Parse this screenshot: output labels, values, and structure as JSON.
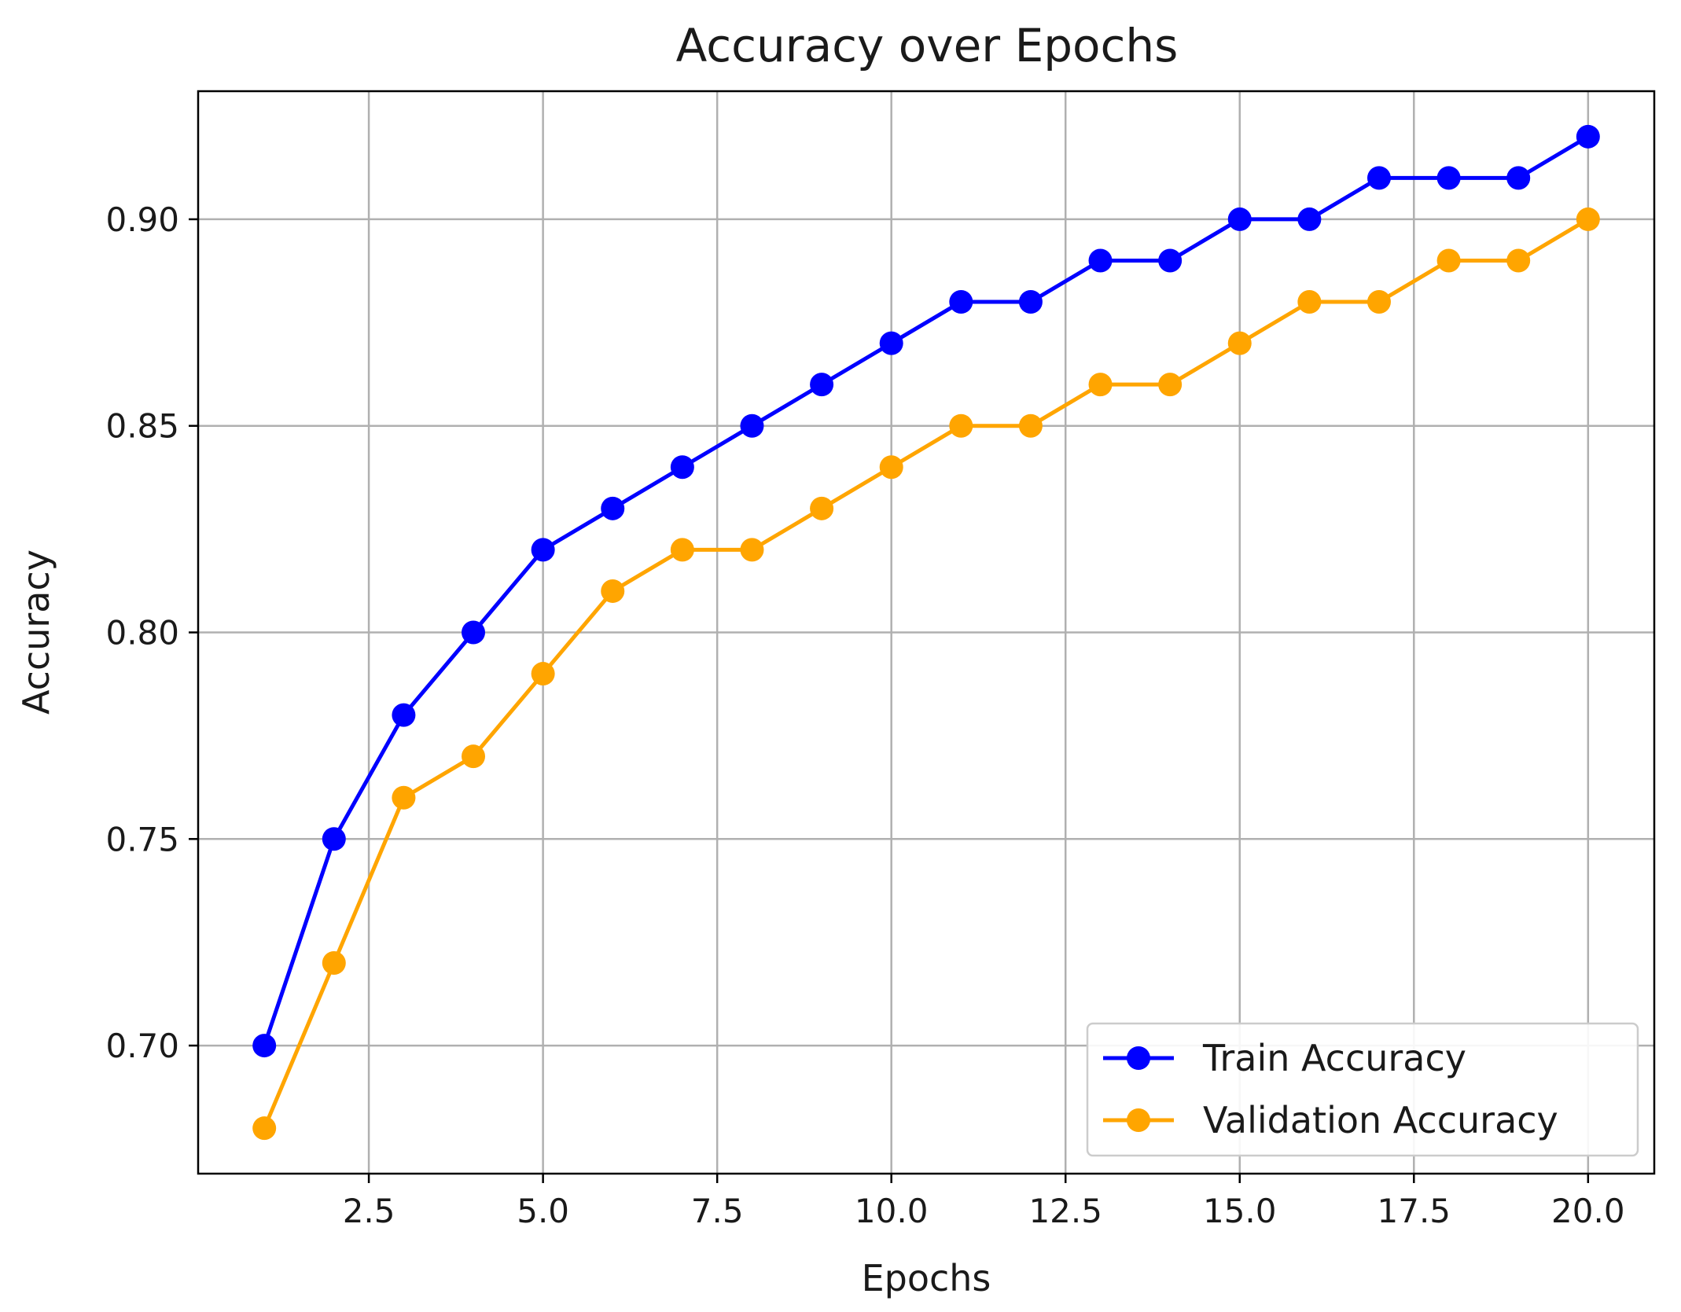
{
  "chart_data": {
    "type": "line",
    "title": "Accuracy over Epochs",
    "xlabel": "Epochs",
    "ylabel": "Accuracy",
    "x": [
      1,
      2,
      3,
      4,
      5,
      6,
      7,
      8,
      9,
      10,
      11,
      12,
      13,
      14,
      15,
      16,
      17,
      18,
      19,
      20
    ],
    "xlim": [
      0.05,
      20.95
    ],
    "ylim": [
      0.669,
      0.931
    ],
    "xticks": [
      2.5,
      5.0,
      7.5,
      10.0,
      12.5,
      15.0,
      17.5,
      20.0
    ],
    "xtick_labels": [
      "2.5",
      "5.0",
      "7.5",
      "10.0",
      "12.5",
      "15.0",
      "17.5",
      "20.0"
    ],
    "yticks": [
      0.7,
      0.75,
      0.8,
      0.85,
      0.9
    ],
    "ytick_labels": [
      "0.70",
      "0.75",
      "0.80",
      "0.85",
      "0.90"
    ],
    "grid": true,
    "legend_position": "lower-right",
    "series": [
      {
        "name": "Train Accuracy",
        "color": "#0000ff",
        "marker": "circle",
        "values": [
          0.7,
          0.75,
          0.78,
          0.8,
          0.82,
          0.83,
          0.84,
          0.85,
          0.86,
          0.87,
          0.88,
          0.88,
          0.89,
          0.89,
          0.9,
          0.9,
          0.91,
          0.91,
          0.91,
          0.92
        ]
      },
      {
        "name": "Validation Accuracy",
        "color": "#ffa500",
        "marker": "circle",
        "values": [
          0.68,
          0.72,
          0.76,
          0.77,
          0.79,
          0.81,
          0.82,
          0.82,
          0.83,
          0.84,
          0.85,
          0.85,
          0.86,
          0.86,
          0.87,
          0.88,
          0.88,
          0.89,
          0.89,
          0.9
        ]
      }
    ]
  }
}
